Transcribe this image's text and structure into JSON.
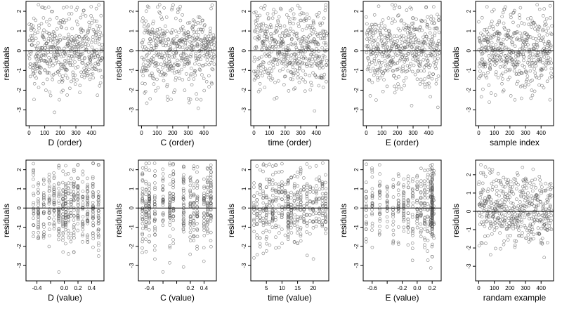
{
  "chart_data": [
    {
      "type": "scatter",
      "xlabel": "D (order)",
      "ylabel": "residuals",
      "xlim": [
        -20,
        480
      ],
      "ylim": [
        -3.8,
        2.5
      ],
      "xticks": [
        0,
        100,
        200,
        300,
        400
      ],
      "xtick_labels": [
        "0",
        "100",
        "200",
        "300",
        "400"
      ],
      "yticks": [
        -3,
        -2,
        -1,
        0,
        1,
        2
      ],
      "ytick_labels": [
        "-3",
        "-2",
        "-1",
        "0",
        "1",
        "2"
      ],
      "x_kind": "order",
      "n": 470,
      "seed": 11,
      "hline": 0
    },
    {
      "type": "scatter",
      "xlabel": "C (order)",
      "ylabel": "residuals",
      "xlim": [
        -20,
        480
      ],
      "ylim": [
        -3.8,
        2.5
      ],
      "xticks": [
        0,
        100,
        200,
        300,
        400
      ],
      "xtick_labels": [
        "0",
        "100",
        "200",
        "300",
        "400"
      ],
      "yticks": [
        -3,
        -2,
        -1,
        0,
        1,
        2
      ],
      "ytick_labels": [
        "-3",
        "-2",
        "-1",
        "0",
        "1",
        "2"
      ],
      "x_kind": "order",
      "n": 470,
      "seed": 23,
      "hline": 0
    },
    {
      "type": "scatter",
      "xlabel": "time (order)",
      "ylabel": "residuals",
      "xlim": [
        -20,
        480
      ],
      "ylim": [
        -3.8,
        2.5
      ],
      "xticks": [
        0,
        100,
        200,
        300,
        400
      ],
      "xtick_labels": [
        "0",
        "100",
        "200",
        "300",
        "400"
      ],
      "yticks": [
        -3,
        -2,
        -1,
        0,
        1,
        2
      ],
      "ytick_labels": [
        "-3",
        "-2",
        "-1",
        "0",
        "1",
        "2"
      ],
      "x_kind": "order",
      "n": 470,
      "seed": 37,
      "hline": 0
    },
    {
      "type": "scatter",
      "xlabel": "E (order)",
      "ylabel": "residuals",
      "xlim": [
        -20,
        480
      ],
      "ylim": [
        -3.8,
        2.5
      ],
      "xticks": [
        0,
        100,
        200,
        300,
        400
      ],
      "xtick_labels": [
        "0",
        "100",
        "200",
        "300",
        "400"
      ],
      "yticks": [
        -3,
        -2,
        -1,
        0,
        1,
        2
      ],
      "ytick_labels": [
        "-3",
        "-2",
        "-1",
        "0",
        "1",
        "2"
      ],
      "x_kind": "order",
      "n": 470,
      "seed": 41,
      "hline": 0
    },
    {
      "type": "scatter",
      "xlabel": "sample index",
      "ylabel": "residuals",
      "xlim": [
        -20,
        480
      ],
      "ylim": [
        -3.8,
        2.5
      ],
      "xticks": [
        0,
        100,
        200,
        300,
        400
      ],
      "xtick_labels": [
        "0",
        "100",
        "200",
        "300",
        "400"
      ],
      "yticks": [
        -3,
        -2,
        -1,
        0,
        1,
        2
      ],
      "ytick_labels": [
        "-3",
        "-2",
        "-1",
        "0",
        "1",
        "2"
      ],
      "x_kind": "order",
      "n": 470,
      "seed": 53,
      "hline": 0
    },
    {
      "type": "scatter",
      "xlabel": "D (value)",
      "ylabel": "residuals",
      "xlim": [
        -0.56,
        0.58
      ],
      "ylim": [
        -3.8,
        2.5
      ],
      "xticks": [
        -0.4,
        -0.2,
        0.0,
        0.2,
        0.4
      ],
      "xtick_labels": [
        "-0.4",
        "",
        "0.0",
        "0.2",
        "0.4"
      ],
      "yticks": [
        -3,
        -2,
        -1,
        0,
        1,
        2
      ],
      "ytick_labels": [
        "-3",
        "-2",
        "-1",
        "0",
        "1",
        "2"
      ],
      "x_kind": "values",
      "x_levels": [
        -0.45,
        -0.38,
        -0.3,
        -0.22,
        -0.15,
        -0.08,
        -0.02,
        0.02,
        0.06,
        0.1,
        0.14,
        0.2,
        0.27,
        0.34,
        0.42,
        0.5
      ],
      "n": 470,
      "seed": 61,
      "hline": 0
    },
    {
      "type": "scatter",
      "xlabel": "C (value)",
      "ylabel": "residuals",
      "xlim": [
        -0.56,
        0.58
      ],
      "ylim": [
        -3.8,
        2.5
      ],
      "xticks": [
        -0.4,
        -0.2,
        0.0,
        0.2,
        0.4
      ],
      "xtick_labels": [
        "-0.4",
        "",
        "",
        "0.2",
        "0.4"
      ],
      "yticks": [
        -3,
        -2,
        -1,
        0,
        1,
        2
      ],
      "ytick_labels": [
        "-3",
        "-2",
        "-1",
        "0",
        "1",
        "2"
      ],
      "x_kind": "values",
      "x_levels": [
        -0.5,
        -0.45,
        -0.4,
        -0.32,
        -0.2,
        -0.1,
        -0.05,
        0.1,
        0.2,
        0.25,
        0.3,
        0.4,
        0.45,
        0.5
      ],
      "n": 470,
      "seed": 67,
      "hline": 0
    },
    {
      "type": "scatter",
      "xlabel": "time (value)",
      "ylabel": "residuals",
      "xlim": [
        0,
        25
      ],
      "ylim": [
        -3.8,
        2.5
      ],
      "xticks": [
        5,
        10,
        15,
        20
      ],
      "xtick_labels": [
        "5",
        "10",
        "15",
        "20"
      ],
      "yticks": [
        -3,
        -2,
        -1,
        0,
        1,
        2
      ],
      "ytick_labels": [
        "-3",
        "-2",
        "-1",
        "0",
        "1",
        "2"
      ],
      "x_kind": "values",
      "x_levels": [
        1,
        2,
        3,
        4,
        5,
        6,
        7,
        8,
        9,
        10,
        11,
        12,
        12,
        12,
        13,
        14,
        15,
        16,
        17,
        18,
        19,
        20,
        21,
        22,
        23,
        24
      ],
      "n": 470,
      "seed": 71,
      "hline": 0
    },
    {
      "type": "scatter",
      "xlabel": "E (value)",
      "ylabel": "residuals",
      "xlim": [
        -0.72,
        0.32
      ],
      "ylim": [
        -3.8,
        2.5
      ],
      "xticks": [
        -0.6,
        -0.4,
        -0.2,
        0.0,
        0.2
      ],
      "xtick_labels": [
        "-0.6",
        "",
        "-0.2",
        "0.0",
        "0.2"
      ],
      "yticks": [
        -3,
        -2,
        -1,
        0,
        1,
        2
      ],
      "ytick_labels": [
        "-3",
        "-2",
        "-1",
        "0",
        "1",
        "2"
      ],
      "x_kind": "values",
      "x_levels": [
        -0.68,
        -0.6,
        -0.5,
        -0.4,
        -0.32,
        -0.25,
        -0.18,
        -0.12,
        -0.06,
        0.0,
        0.05,
        0.1,
        0.14,
        0.18,
        0.2,
        0.2,
        0.2,
        0.2,
        0.2,
        0.22
      ],
      "n": 470,
      "seed": 83,
      "hline": 0
    },
    {
      "type": "scatter",
      "xlabel": "randam example",
      "ylabel": "residuals",
      "xlim": [
        -20,
        480
      ],
      "ylim": [
        -3.8,
        2.8
      ],
      "xticks": [
        0,
        100,
        200,
        300,
        400
      ],
      "xtick_labels": [
        "0",
        "100",
        "200",
        "300",
        "400"
      ],
      "yticks": [
        -3,
        -2,
        -1,
        0,
        1,
        2
      ],
      "ytick_labels": [
        "-3",
        "-2",
        "-1",
        "0",
        "1",
        "2"
      ],
      "x_kind": "order",
      "n": 470,
      "seed": 97,
      "hline": 0
    }
  ],
  "colors": {
    "points": "#555555",
    "axes": "#000000",
    "background": "#ffffff"
  }
}
